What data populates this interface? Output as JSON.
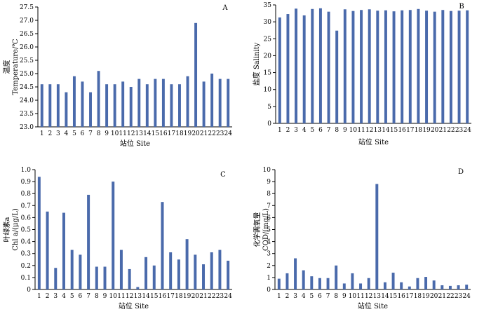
{
  "figure_title": "Four-panel figure: temperature, salinity, chlorophyll a and COD by station",
  "colors": {
    "bar": "#4a6aab",
    "axis": "#000000"
  },
  "chart_data": [
    {
      "type": "bar",
      "panel": "A",
      "ylabel_lines": [
        "温度",
        "Temperature/℃"
      ],
      "xlabel": "站位 Site",
      "categories": [
        "1",
        "2",
        "3",
        "4",
        "5",
        "6",
        "7",
        "8",
        "9",
        "10",
        "11",
        "12",
        "13",
        "14",
        "15",
        "16",
        "17",
        "18",
        "19",
        "20",
        "21",
        "22",
        "23",
        "24"
      ],
      "values": [
        24.6,
        24.6,
        24.6,
        24.3,
        24.9,
        24.7,
        24.3,
        25.1,
        24.6,
        24.6,
        24.7,
        24.5,
        24.8,
        24.6,
        24.8,
        24.8,
        24.6,
        24.6,
        24.9,
        26.9,
        24.7,
        25.0,
        24.8,
        24.8
      ],
      "ylim": [
        23.0,
        27.5
      ],
      "yticks": [
        "23.0",
        "23.5",
        "24.0",
        "24.5",
        "25.0",
        "25.5",
        "26.0",
        "26.5",
        "27.0",
        "27.5"
      ]
    },
    {
      "type": "bar",
      "panel": "B",
      "ylabel_lines": [
        "盐度 Salinity"
      ],
      "xlabel": "站位 Site",
      "categories": [
        "1",
        "2",
        "3",
        "4",
        "5",
        "6",
        "7",
        "8",
        "9",
        "10",
        "11",
        "12",
        "13",
        "14",
        "15",
        "16",
        "17",
        "18",
        "19",
        "20",
        "21",
        "22",
        "23",
        "24"
      ],
      "values": [
        31.3,
        32.3,
        33.9,
        31.9,
        33.8,
        34.0,
        33.0,
        27.4,
        33.7,
        33.2,
        33.5,
        33.7,
        33.3,
        33.4,
        33.1,
        33.4,
        33.5,
        33.8,
        33.3,
        33.0,
        33.5,
        33.2,
        33.3,
        33.4
      ],
      "ylim": [
        0,
        35
      ],
      "yticks": [
        "0",
        "5",
        "10",
        "15",
        "20",
        "25",
        "30",
        "35"
      ]
    },
    {
      "type": "bar",
      "panel": "C",
      "ylabel_lines": [
        "叶绿素a",
        "Chl a/(μg/L)"
      ],
      "xlabel": "站位 Site",
      "categories": [
        "1",
        "2",
        "3",
        "4",
        "5",
        "6",
        "7",
        "8",
        "9",
        "10",
        "11",
        "12",
        "13",
        "14",
        "15",
        "16",
        "17",
        "18",
        "19",
        "20",
        "21",
        "22",
        "23",
        "24"
      ],
      "values": [
        0.94,
        0.65,
        0.18,
        0.64,
        0.33,
        0.29,
        0.79,
        0.19,
        0.19,
        0.9,
        0.33,
        0.17,
        0.02,
        0.27,
        0.2,
        0.73,
        0.31,
        0.25,
        0.42,
        0.29,
        0.21,
        0.31,
        0.33,
        0.24
      ],
      "ylim": [
        0,
        1.0
      ],
      "yticks": [
        "0",
        "0.1",
        "0.2",
        "0.3",
        "0.4",
        "0.5",
        "0.6",
        "0.7",
        "0.8",
        "0.9",
        "1.0"
      ]
    },
    {
      "type": "bar",
      "panel": "D",
      "ylabel_lines": [
        "化学需氧量",
        "COD/(mg/L)"
      ],
      "xlabel": "站位 Site",
      "categories": [
        "1",
        "2",
        "3",
        "4",
        "5",
        "6",
        "7",
        "8",
        "9",
        "10",
        "11",
        "12",
        "13",
        "14",
        "15",
        "16",
        "17",
        "18",
        "19",
        "20",
        "21",
        "22",
        "23",
        "24"
      ],
      "values": [
        0.9,
        1.35,
        2.6,
        1.6,
        1.1,
        0.95,
        0.95,
        2.0,
        0.5,
        1.35,
        0.5,
        0.95,
        8.8,
        0.6,
        1.4,
        0.6,
        0.25,
        0.95,
        1.05,
        0.75,
        0.35,
        0.3,
        0.35,
        0.4
      ],
      "ylim": [
        0,
        10
      ],
      "yticks": [
        "0",
        "1",
        "2",
        "3",
        "4",
        "5",
        "6",
        "7",
        "8",
        "9",
        "10"
      ]
    }
  ]
}
